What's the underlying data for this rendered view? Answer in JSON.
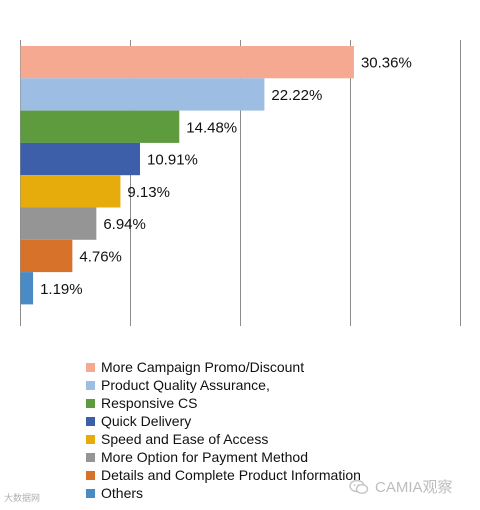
{
  "chart_data": {
    "type": "bar",
    "orientation": "horizontal",
    "categories": [
      "More Campaign Promo/Discount",
      "Product Quality Assurance,",
      "Responsive CS",
      "Quick Delivery",
      "Speed and Ease of Access",
      "More Option for Payment Method",
      "Details and Complete Product Information",
      "Others"
    ],
    "values": [
      30.36,
      22.22,
      14.48,
      10.91,
      9.13,
      6.94,
      4.76,
      1.19
    ],
    "value_labels": [
      "30.36%",
      "22.22%",
      "14.48%",
      "10.91%",
      "9.13%",
      "6.94%",
      "4.76%",
      "1.19%"
    ],
    "colors": [
      "#f4a990",
      "#9dbde3",
      "#5e9b3f",
      "#3d5ea8",
      "#e6ac0c",
      "#959595",
      "#d7722b",
      "#4a8bc5"
    ],
    "xlim": [
      0,
      40
    ],
    "grid": "vertical",
    "legend_position": "bottom",
    "title": "",
    "xlabel": "",
    "ylabel": ""
  },
  "watermark": {
    "left_text": "大数据网",
    "right_text": "CAMIA观察"
  }
}
